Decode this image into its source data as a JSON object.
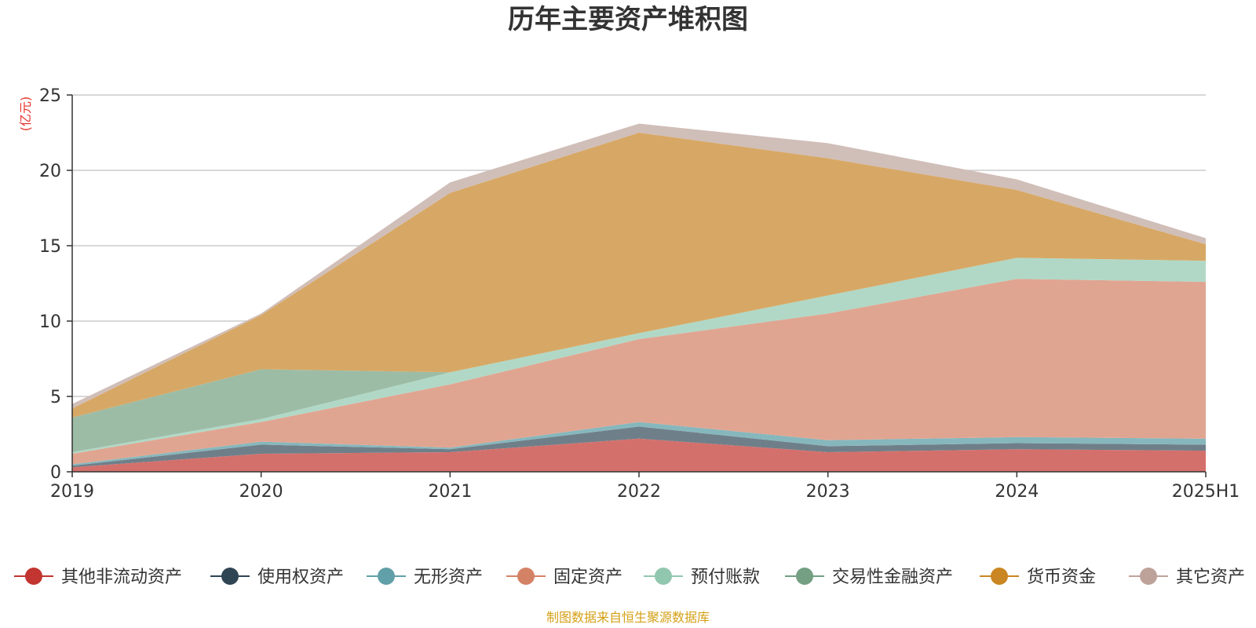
{
  "chart_data": {
    "type": "area",
    "stacked": true,
    "title": "历年主要资产堆积图",
    "unit_label": "(亿元)",
    "categories": [
      "2019",
      "2020",
      "2021",
      "2022",
      "2023",
      "2024",
      "2025H1"
    ],
    "ylim": [
      0,
      25
    ],
    "yticks": [
      0,
      5,
      10,
      15,
      20,
      25
    ],
    "grid": true,
    "legend_position": "bottom",
    "series": [
      {
        "name": "其他非流动资产",
        "color": "#c23531",
        "fill": "#d4706c",
        "values": [
          0.3,
          1.2,
          1.3,
          2.2,
          1.3,
          1.5,
          1.4
        ]
      },
      {
        "name": "使用权资产",
        "color": "#2f4554",
        "fill": "#6f7f89",
        "values": [
          0.1,
          0.6,
          0.2,
          0.8,
          0.4,
          0.4,
          0.4
        ]
      },
      {
        "name": "无形资产",
        "color": "#61a0a8",
        "fill": "#86b7bd",
        "values": [
          0.1,
          0.2,
          0.1,
          0.3,
          0.4,
          0.4,
          0.4
        ]
      },
      {
        "name": "固定资产",
        "color": "#d48265",
        "fill": "#e0a591",
        "values": [
          0.7,
          1.3,
          4.2,
          5.5,
          8.4,
          10.5,
          10.4
        ]
      },
      {
        "name": "预付账款",
        "color": "#91c7ae",
        "fill": "#b1d8c6",
        "values": [
          0.1,
          0.2,
          0.8,
          0.4,
          1.2,
          1.4,
          1.4
        ]
      },
      {
        "name": "交易性金融资产",
        "color": "#749f83",
        "fill": "#9cbca6",
        "values": [
          2.3,
          3.3,
          0.0,
          0.0,
          0.0,
          0.0,
          0.0
        ]
      },
      {
        "name": "货币资金",
        "color": "#ca8622",
        "fill": "#d7a865",
        "values": [
          0.6,
          3.6,
          11.9,
          13.3,
          9.1,
          4.5,
          1.1
        ]
      },
      {
        "name": "其它资产",
        "color": "#bda29a",
        "fill": "#d0beb8",
        "values": [
          0.3,
          0.1,
          0.7,
          0.6,
          1.0,
          0.7,
          0.4
        ]
      }
    ]
  },
  "source_note": "制图数据来自恒生聚源数据库"
}
